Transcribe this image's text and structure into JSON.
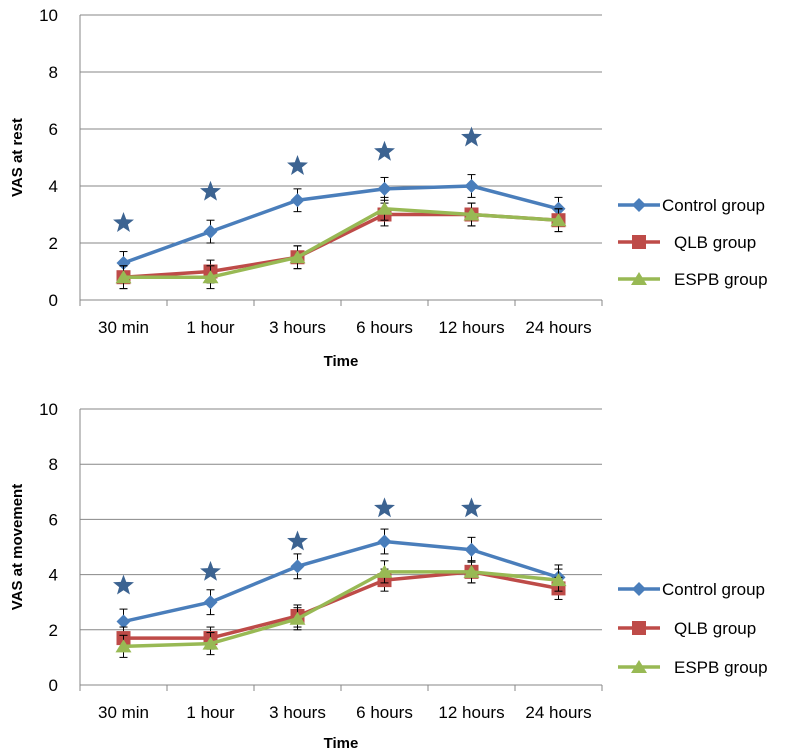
{
  "chart_data": [
    {
      "type": "line",
      "xlabel": "Time",
      "ylabel": "VAS at rest",
      "ylim": [
        0,
        10
      ],
      "yticks": [
        "0",
        "2",
        "4",
        "6",
        "8",
        "10"
      ],
      "categories": [
        "30 min",
        "1 hour",
        "3 hours",
        "6 hours",
        "12 hours",
        "24 hours"
      ],
      "grid": "horizontal",
      "legend_position": "right",
      "series": [
        {
          "name": "Control group",
          "color": "#4A7EBB",
          "marker": "diamond",
          "values": [
            1.3,
            2.4,
            3.5,
            3.9,
            4.0,
            3.2
          ],
          "error": [
            0.4,
            0.4,
            0.4,
            0.4,
            0.4,
            0.4
          ]
        },
        {
          "name": "QLB group",
          "color": "#BE4B48",
          "marker": "square",
          "values": [
            0.8,
            1.0,
            1.5,
            3.0,
            3.0,
            2.8
          ],
          "error": [
            0.4,
            0.4,
            0.4,
            0.4,
            0.4,
            0.4
          ]
        },
        {
          "name": "ESPB group",
          "color": "#98B954",
          "marker": "triangle",
          "values": [
            0.8,
            0.8,
            1.5,
            3.2,
            3.0,
            2.8
          ],
          "error": [
            0.4,
            0.4,
            0.4,
            0.4,
            0.4,
            0.4
          ]
        }
      ],
      "significance_stars": [
        {
          "category": "30 min",
          "y": 2.7
        },
        {
          "category": "1 hour",
          "y": 3.8
        },
        {
          "category": "3 hours",
          "y": 4.7
        },
        {
          "category": "6 hours",
          "y": 5.2
        },
        {
          "category": "12 hours",
          "y": 5.7
        }
      ]
    },
    {
      "type": "line",
      "xlabel": "Time",
      "ylabel": "VAS at movement",
      "ylim": [
        0,
        10
      ],
      "yticks": [
        "0",
        "2",
        "4",
        "6",
        "8",
        "10"
      ],
      "categories": [
        "30 min",
        "1 hour",
        "3 hours",
        "6 hours",
        "12 hours",
        "24 hours"
      ],
      "grid": "horizontal",
      "legend_position": "right",
      "series": [
        {
          "name": "Control group",
          "color": "#4A7EBB",
          "marker": "diamond",
          "values": [
            2.3,
            3.0,
            4.3,
            5.2,
            4.9,
            3.9
          ],
          "error": [
            0.45,
            0.45,
            0.45,
            0.45,
            0.45,
            0.45
          ]
        },
        {
          "name": "QLB group",
          "color": "#BE4B48",
          "marker": "square",
          "values": [
            1.7,
            1.7,
            2.5,
            3.8,
            4.1,
            3.5
          ],
          "error": [
            0.4,
            0.4,
            0.4,
            0.4,
            0.4,
            0.4
          ]
        },
        {
          "name": "ESPB group",
          "color": "#98B954",
          "marker": "triangle",
          "values": [
            1.4,
            1.5,
            2.4,
            4.1,
            4.1,
            3.8
          ],
          "error": [
            0.4,
            0.4,
            0.4,
            0.4,
            0.4,
            0.4
          ]
        }
      ],
      "significance_stars": [
        {
          "category": "30 min",
          "y": 3.6
        },
        {
          "category": "1 hour",
          "y": 4.1
        },
        {
          "category": "3 hours",
          "y": 5.2
        },
        {
          "category": "6 hours",
          "y": 6.4
        },
        {
          "category": "12 hours",
          "y": 6.4
        }
      ]
    }
  ],
  "star_color": "#3C6391"
}
